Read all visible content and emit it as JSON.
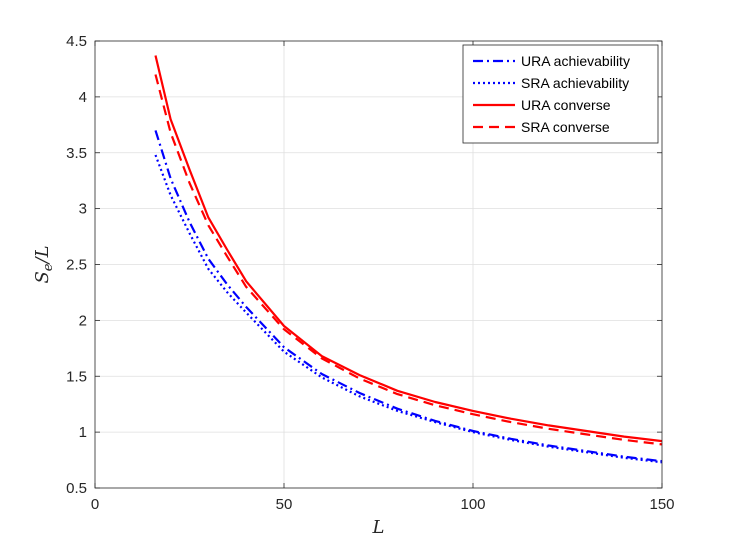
{
  "chart_data": {
    "type": "line",
    "xlabel": "L",
    "ylabel": "S_e/L",
    "xlim": [
      0,
      150
    ],
    "ylim": [
      0.5,
      4.5
    ],
    "xticks": [
      0,
      50,
      100,
      150
    ],
    "yticks": [
      0.5,
      1,
      1.5,
      2,
      2.5,
      3,
      3.5,
      4,
      4.5
    ],
    "xtick_labels": [
      "0",
      "50",
      "100",
      "150"
    ],
    "ytick_labels": [
      "0.5",
      "1",
      "1.5",
      "2",
      "2.5",
      "3",
      "3.5",
      "4",
      "4.5"
    ],
    "grid": true,
    "legend_position": "top-right",
    "x": [
      16,
      20,
      25,
      30,
      35,
      40,
      50,
      60,
      70,
      80,
      90,
      100,
      110,
      120,
      130,
      140,
      150
    ],
    "series": [
      {
        "name": "URA achievability",
        "color": "#0000ff",
        "dash": "dashdot",
        "values": [
          3.7,
          3.27,
          2.88,
          2.55,
          2.32,
          2.12,
          1.76,
          1.52,
          1.35,
          1.21,
          1.1,
          1.01,
          0.94,
          0.88,
          0.83,
          0.78,
          0.74
        ]
      },
      {
        "name": "SRA achievability",
        "color": "#0000ff",
        "dash": "dotted",
        "values": [
          3.48,
          3.12,
          2.78,
          2.46,
          2.25,
          2.07,
          1.72,
          1.49,
          1.32,
          1.19,
          1.09,
          1.0,
          0.93,
          0.87,
          0.82,
          0.77,
          0.73
        ]
      },
      {
        "name": "URA converse",
        "color": "#ff0000",
        "dash": "solid",
        "values": [
          4.37,
          3.8,
          3.35,
          2.92,
          2.63,
          2.35,
          1.95,
          1.68,
          1.51,
          1.37,
          1.27,
          1.19,
          1.12,
          1.06,
          1.01,
          0.96,
          0.92
        ]
      },
      {
        "name": "SRA converse",
        "color": "#ff0000",
        "dash": "dashed",
        "values": [
          4.2,
          3.68,
          3.23,
          2.85,
          2.57,
          2.3,
          1.92,
          1.66,
          1.48,
          1.34,
          1.24,
          1.16,
          1.09,
          1.03,
          0.98,
          0.93,
          0.89
        ]
      }
    ]
  }
}
